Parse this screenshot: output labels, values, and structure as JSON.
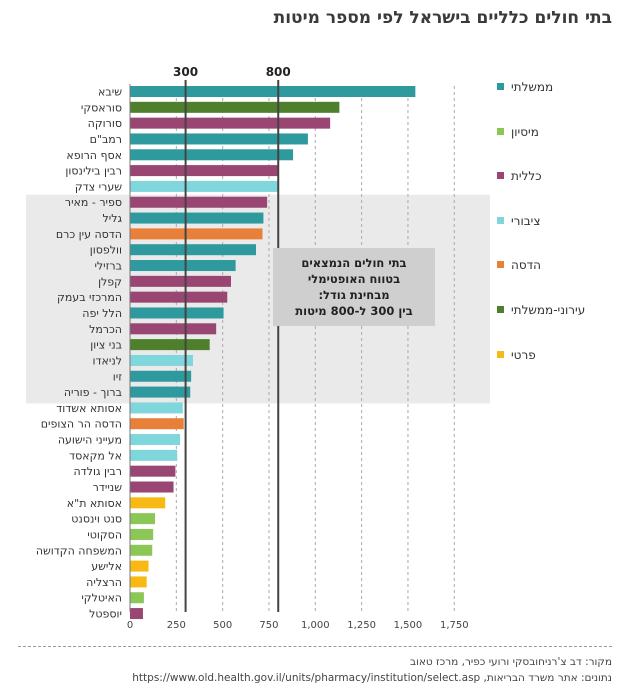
{
  "title": "בתי חולים כלליים בישראל לפי מספר מיטות",
  "annotation": {
    "lines": [
      "בתי חולים הנמצאים",
      "בטווח האופטימלי",
      "מבחינת גודל:",
      "בין 300 ל-800 מיטות"
    ]
  },
  "footer": {
    "source_label": "מקור:",
    "source_text": "דב צ'רניחובסקי ורועי כפיר, מרכז טאוב",
    "data_label": "נתונים:",
    "data_text": "אתר משרד הבריאות,",
    "data_url": "https://www.old.health.gov.il/units/pharmacy/institution/select.asp"
  },
  "legend": [
    {
      "label": "ממשלתי",
      "color": "#2e9a9e"
    },
    {
      "label": "מיסיון",
      "color": "#8cc657"
    },
    {
      "label": "כללית",
      "color": "#9a4672"
    },
    {
      "label": "ציבורי",
      "color": "#7fd6dc"
    },
    {
      "label": "הדסה",
      "color": "#e8803a"
    },
    {
      "label": "עירוני-ממשלתי",
      "color": "#4e7f2c"
    },
    {
      "label": "פרטי",
      "color": "#f7b913"
    }
  ],
  "chart_data": {
    "type": "bar",
    "orientation": "horizontal",
    "title": "בתי חולים כלליים בישראל לפי מספר מיטות",
    "xlabel": "",
    "ylabel": "",
    "xlim": [
      0,
      1750
    ],
    "xticks": [
      0,
      250,
      500,
      750,
      1000,
      1250,
      1500,
      1750
    ],
    "xtick_labels": [
      "0",
      "250",
      "500",
      "750",
      "1,000",
      "1,250",
      "1,500",
      "1,750"
    ],
    "reference_lines": [
      {
        "value": 300,
        "label": "300"
      },
      {
        "value": 800,
        "label": "800"
      }
    ],
    "optimal_band_categories": [
      "ספיר - מאיר",
      "ברוך - פוריה"
    ],
    "categories": [
      "שיבא",
      "סוראסקי",
      "סורוקה",
      "רמב\"ם",
      "אסף הרופא",
      "רבין בילינסון",
      "שערי צדק",
      "ספיר - מאיר",
      "גליל",
      "הדסה עין כרם",
      "וולפסון",
      "ברזילי",
      "קפלן",
      "המרכזי בעמק",
      "הלל יפה",
      "הכרמל",
      "בני ציון",
      "לניאדו",
      "זיו",
      "ברוך - פוריה",
      "אסותא אשדוד",
      "הדסה הר הצופים",
      "מעייני הישועה",
      "אל מקאסד",
      "רבין גולדה",
      "שניידר",
      "אסותא ת\"א",
      "סנט וינסנט",
      "הסקוטי",
      "המשפחה הקדושה",
      "אלישע",
      "הרצליה",
      "האיטלקי",
      "יוספטל"
    ],
    "values": [
      1540,
      1130,
      1080,
      960,
      880,
      800,
      800,
      740,
      720,
      715,
      680,
      570,
      545,
      525,
      505,
      465,
      430,
      340,
      330,
      325,
      285,
      290,
      270,
      255,
      245,
      235,
      190,
      135,
      125,
      120,
      100,
      90,
      75,
      70
    ],
    "groups": [
      "ממשלתי",
      "עירוני-ממשלתי",
      "כללית",
      "ממשלתי",
      "ממשלתי",
      "כללית",
      "ציבורי",
      "כללית",
      "ממשלתי",
      "הדסה",
      "ממשלתי",
      "ממשלתי",
      "כללית",
      "כללית",
      "ממשלתי",
      "כללית",
      "עירוני-ממשלתי",
      "ציבורי",
      "ממשלתי",
      "ממשלתי",
      "ציבורי",
      "הדסה",
      "ציבורי",
      "ציבורי",
      "כללית",
      "כללית",
      "פרטי",
      "מיסיון",
      "מיסיון",
      "מיסיון",
      "פרטי",
      "פרטי",
      "מיסיון",
      "כללית"
    ]
  }
}
